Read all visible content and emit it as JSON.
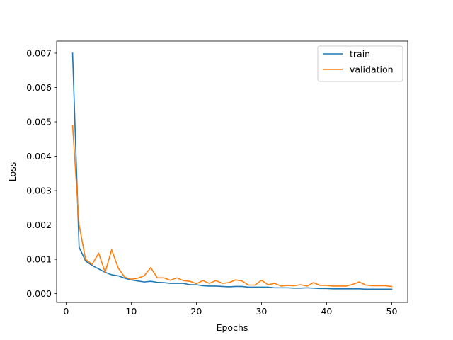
{
  "chart_data": {
    "type": "line",
    "title": "",
    "xlabel": "Epochs",
    "ylabel": "Loss",
    "xlim": [
      -1.45,
      52.45
    ],
    "ylim": [
      -0.000255,
      0.00735
    ],
    "xticks": [
      0,
      10,
      20,
      30,
      40,
      50
    ],
    "yticks": [
      0.0,
      0.001,
      0.002,
      0.003,
      0.004,
      0.005,
      0.006,
      0.007
    ],
    "ytick_labels": [
      "0.000",
      "0.001",
      "0.002",
      "0.003",
      "0.004",
      "0.005",
      "0.006",
      "0.007"
    ],
    "grid": false,
    "legend_position": "top-right",
    "x": [
      1,
      2,
      3,
      4,
      5,
      6,
      7,
      8,
      9,
      10,
      11,
      12,
      13,
      14,
      15,
      16,
      17,
      18,
      19,
      20,
      21,
      22,
      23,
      24,
      25,
      26,
      27,
      28,
      29,
      30,
      31,
      32,
      33,
      34,
      35,
      36,
      37,
      38,
      39,
      40,
      41,
      42,
      43,
      44,
      45,
      46,
      47,
      48,
      49,
      50
    ],
    "series": [
      {
        "name": "train",
        "color": "#1f77b4",
        "values": [
          0.007,
          0.00135,
          0.00095,
          0.00082,
          0.00072,
          0.00062,
          0.00055,
          0.00052,
          0.00045,
          0.0004,
          0.00037,
          0.00034,
          0.00036,
          0.00033,
          0.00032,
          0.0003,
          0.0003,
          0.0003,
          0.00026,
          0.00026,
          0.00023,
          0.00022,
          0.00022,
          0.00021,
          0.0002,
          0.00021,
          0.00021,
          0.00019,
          0.00019,
          0.00019,
          0.00019,
          0.00017,
          0.00017,
          0.00017,
          0.00016,
          0.00016,
          0.00017,
          0.00016,
          0.00015,
          0.00015,
          0.00014,
          0.00014,
          0.00014,
          0.00014,
          0.00014,
          0.00013,
          0.00013,
          0.00013,
          0.00013,
          0.00013
        ]
      },
      {
        "name": "validation",
        "color": "#ff7f0e",
        "values": [
          0.0049,
          0.002,
          0.001,
          0.00085,
          0.00118,
          0.00062,
          0.00128,
          0.00075,
          0.00048,
          0.00042,
          0.00045,
          0.00052,
          0.00076,
          0.00046,
          0.00046,
          0.00039,
          0.00046,
          0.00038,
          0.00036,
          0.00029,
          0.00038,
          0.0003,
          0.00038,
          0.0003,
          0.00032,
          0.0004,
          0.00037,
          0.00025,
          0.00025,
          0.00039,
          0.00026,
          0.0003,
          0.00022,
          0.00024,
          0.00023,
          0.00026,
          0.00022,
          0.00032,
          0.00024,
          0.00024,
          0.00022,
          0.00022,
          0.00022,
          0.00027,
          0.00034,
          0.00025,
          0.00023,
          0.00023,
          0.00023,
          0.00021
        ]
      }
    ]
  }
}
